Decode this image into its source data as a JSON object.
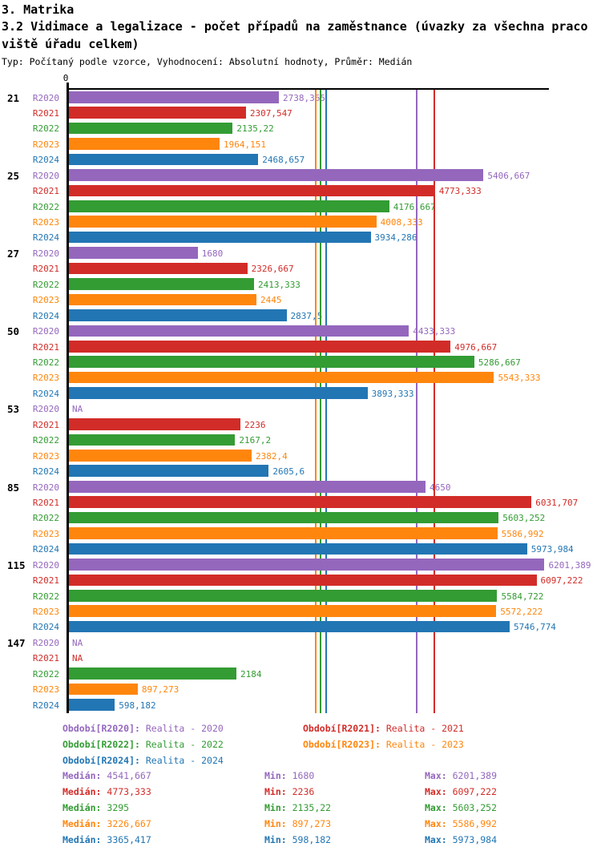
{
  "header": {
    "section": "3. Matrika",
    "title_lines": [
      "3.2 Vidimace a legalizace - počet případů na zaměstnance (úvazky za všechna praco",
      "viště úřadu celkem)"
    ],
    "subtitle": "Typ: Počítaný podle vzorce, Vyhodnocení: Absolutní hodnoty, Průměr: Medián"
  },
  "chart_data": {
    "type": "bar",
    "orientation": "horizontal",
    "axis_zero_label": "0",
    "xlim": [
      0,
      6900
    ],
    "grid": "median-lines-per-series",
    "legend_position": "bottom",
    "categories": [
      "21",
      "25",
      "27",
      "50",
      "53",
      "85",
      "115",
      "147"
    ],
    "series": [
      {
        "name": "R2020",
        "color": "#9467bd",
        "legend_label": "Období[R2020]:",
        "legend_value": "Realita - 2020",
        "values": [
          2738.365,
          5406.667,
          1680,
          4433.333,
          null,
          4650,
          6201.389,
          null
        ],
        "value_labels": [
          "2738,365",
          "5406,667",
          "1680",
          "4433,333",
          "NA",
          "4650",
          "6201,389",
          "NA"
        ],
        "median_value": 4541.667,
        "stats": {
          "median": "4541,667",
          "min": "1680",
          "max": "6201,389"
        }
      },
      {
        "name": "R2021",
        "color": "#d22c28",
        "legend_label": "Období[R2021]:",
        "legend_value": "Realita - 2021",
        "values": [
          2307.547,
          4773.333,
          2326.667,
          4976.667,
          2236,
          6031.707,
          6097.222,
          null
        ],
        "value_labels": [
          "2307,547",
          "4773,333",
          "2326,667",
          "4976,667",
          "2236",
          "6031,707",
          "6097,222",
          "NA"
        ],
        "median_value": 4773.333,
        "stats": {
          "median": "4773,333",
          "min": "2236",
          "max": "6097,222"
        }
      },
      {
        "name": "R2022",
        "color": "#339c33",
        "legend_label": "Období[R2022]:",
        "legend_value": "Realita - 2022",
        "values": [
          2135.22,
          4176.667,
          2413.333,
          5286.667,
          2167.2,
          5603.252,
          5584.722,
          2184
        ],
        "value_labels": [
          "2135,22",
          "4176,667",
          "2413,333",
          "5286,667",
          "2167,2",
          "5603,252",
          "5584,722",
          "2184"
        ],
        "median_value": 3295,
        "stats": {
          "median": "3295",
          "min": "2135,22",
          "max": "5603,252"
        }
      },
      {
        "name": "R2023",
        "color": "#ff860d",
        "legend_label": "Období[R2023]:",
        "legend_value": "Realita - 2023",
        "values": [
          1964.151,
          4008.333,
          2445,
          5543.333,
          2382.4,
          5586.992,
          5572.222,
          897.273
        ],
        "value_labels": [
          "1964,151",
          "4008,333",
          "2445",
          "5543,333",
          "2382,4",
          "5586,992",
          "5572,222",
          "897,273"
        ],
        "median_value": 3226.667,
        "stats": {
          "median": "3226,667",
          "min": "897,273",
          "max": "5586,992"
        }
      },
      {
        "name": "R2024",
        "color": "#2276b4",
        "legend_label": "Období[R2024]:",
        "legend_value": "Realita - 2024",
        "values": [
          2468.657,
          3934.286,
          2837.5,
          3893.333,
          2605.6,
          5973.984,
          5746.774,
          598.182
        ],
        "value_labels": [
          "2468,657",
          "3934,286",
          "2837,5",
          "3893,333",
          "2605,6",
          "5973,984",
          "5746,774",
          "598,182"
        ],
        "median_value": 3365.417,
        "stats": {
          "median": "3365,417",
          "min": "598,182",
          "max": "5973,984"
        }
      }
    ]
  },
  "stats_labels": {
    "median": "Medián:",
    "min": "Min:",
    "max": "Max:"
  }
}
